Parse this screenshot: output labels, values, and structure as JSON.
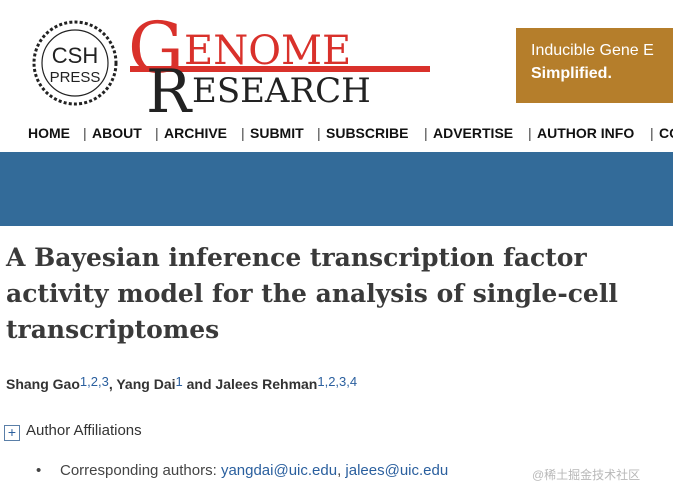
{
  "header": {
    "csh_logo": {
      "line1": "CSH",
      "line2": "PRESS"
    },
    "journal_logo": {
      "g": "G",
      "enome": "ENOME",
      "r": "R",
      "esearch": "ESEARCH"
    },
    "ad": {
      "line1": "Inducible Gene E",
      "line2": "Simplified."
    }
  },
  "nav": {
    "items": [
      "HOME",
      "ABOUT",
      "ARCHIVE",
      "SUBMIT",
      "SUBSCRIBE",
      "ADVERTISE",
      "AUTHOR INFO",
      "CO"
    ],
    "separator": "|"
  },
  "colors": {
    "banner": "#336b99",
    "accent_red": "#d9312b",
    "link": "#2a5f9e",
    "ad_bg": "#b57e2b"
  },
  "article": {
    "title": "A Bayesian inference transcription factor activity model for the analysis of single-cell transcriptomes",
    "authors": [
      {
        "name": "Shang Gao",
        "sup": "1,2,3",
        "after": ", "
      },
      {
        "name": "Yang Dai",
        "sup": "1",
        "after": " and "
      },
      {
        "name": "Jalees Rehman",
        "sup": "1,2,3,4",
        "after": ""
      }
    ],
    "affiliations_toggle": "+",
    "affiliations_label": "Author Affiliations",
    "corresponding": {
      "bullet": "•",
      "label": "Corresponding authors: ",
      "emails": [
        "yangdai@uic.edu",
        "jalees@uic.edu"
      ],
      "separator": ", "
    }
  },
  "watermark": "@稀土掘金技术社区"
}
